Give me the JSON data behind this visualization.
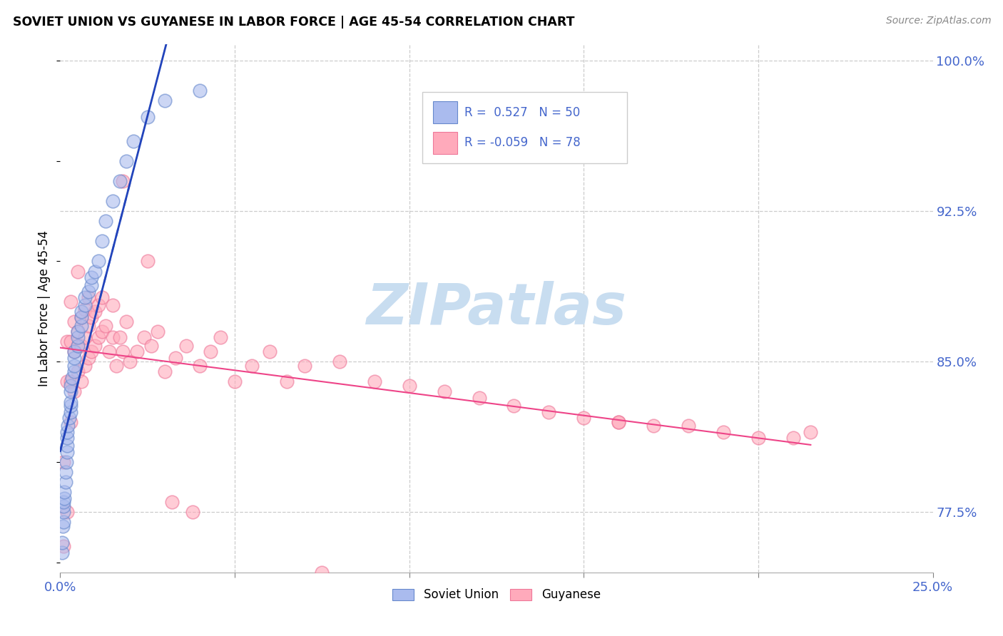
{
  "title": "SOVIET UNION VS GUYANESE IN LABOR FORCE | AGE 45-54 CORRELATION CHART",
  "source": "Source: ZipAtlas.com",
  "ylabel": "In Labor Force | Age 45-54",
  "xlim": [
    0.0,
    0.25
  ],
  "ylim": [
    0.745,
    1.008
  ],
  "yticks_right": [
    0.775,
    0.85,
    0.925,
    1.0
  ],
  "yticklabels_right": [
    "77.5%",
    "85.0%",
    "92.5%",
    "100.0%"
  ],
  "soviet_color": "#aabbee",
  "soviet_edge_color": "#6688cc",
  "guyanese_color": "#ffaabb",
  "guyanese_edge_color": "#ee7799",
  "soviet_line_color": "#2244bb",
  "guyanese_line_color": "#ee4488",
  "tick_color": "#4466cc",
  "watermark_color": "#c8ddf0",
  "soviet_x": [
    0.0005,
    0.0006,
    0.0008,
    0.001,
    0.001,
    0.001,
    0.001,
    0.0012,
    0.0012,
    0.0015,
    0.0015,
    0.0018,
    0.002,
    0.002,
    0.002,
    0.002,
    0.0022,
    0.0025,
    0.003,
    0.003,
    0.003,
    0.003,
    0.003,
    0.0035,
    0.004,
    0.004,
    0.004,
    0.004,
    0.005,
    0.005,
    0.005,
    0.006,
    0.006,
    0.006,
    0.007,
    0.007,
    0.008,
    0.009,
    0.009,
    0.01,
    0.011,
    0.012,
    0.013,
    0.015,
    0.017,
    0.019,
    0.021,
    0.025,
    0.03,
    0.04
  ],
  "soviet_y": [
    0.755,
    0.76,
    0.768,
    0.77,
    0.775,
    0.778,
    0.78,
    0.782,
    0.785,
    0.79,
    0.795,
    0.8,
    0.805,
    0.808,
    0.812,
    0.815,
    0.818,
    0.822,
    0.825,
    0.828,
    0.83,
    0.835,
    0.838,
    0.842,
    0.845,
    0.848,
    0.852,
    0.855,
    0.858,
    0.862,
    0.865,
    0.868,
    0.872,
    0.875,
    0.878,
    0.882,
    0.885,
    0.888,
    0.892,
    0.895,
    0.9,
    0.91,
    0.92,
    0.93,
    0.94,
    0.95,
    0.96,
    0.972,
    0.98,
    0.985
  ],
  "guyanese_x": [
    0.001,
    0.001,
    0.002,
    0.002,
    0.002,
    0.003,
    0.003,
    0.003,
    0.003,
    0.004,
    0.004,
    0.004,
    0.005,
    0.005,
    0.005,
    0.005,
    0.006,
    0.006,
    0.006,
    0.007,
    0.007,
    0.007,
    0.008,
    0.008,
    0.008,
    0.009,
    0.009,
    0.01,
    0.01,
    0.011,
    0.011,
    0.012,
    0.012,
    0.013,
    0.014,
    0.015,
    0.015,
    0.016,
    0.017,
    0.018,
    0.019,
    0.02,
    0.022,
    0.024,
    0.026,
    0.028,
    0.03,
    0.033,
    0.036,
    0.04,
    0.043,
    0.046,
    0.05,
    0.055,
    0.06,
    0.065,
    0.07,
    0.08,
    0.09,
    0.1,
    0.11,
    0.12,
    0.13,
    0.14,
    0.15,
    0.16,
    0.17,
    0.18,
    0.19,
    0.2,
    0.21,
    0.215,
    0.018,
    0.025,
    0.032,
    0.038,
    0.075,
    0.16
  ],
  "guyanese_y": [
    0.758,
    0.8,
    0.775,
    0.84,
    0.86,
    0.82,
    0.84,
    0.86,
    0.88,
    0.835,
    0.855,
    0.87,
    0.845,
    0.858,
    0.865,
    0.895,
    0.84,
    0.858,
    0.872,
    0.848,
    0.862,
    0.876,
    0.852,
    0.868,
    0.882,
    0.855,
    0.872,
    0.858,
    0.875,
    0.862,
    0.878,
    0.865,
    0.882,
    0.868,
    0.855,
    0.862,
    0.878,
    0.848,
    0.862,
    0.855,
    0.87,
    0.85,
    0.855,
    0.862,
    0.858,
    0.865,
    0.845,
    0.852,
    0.858,
    0.848,
    0.855,
    0.862,
    0.84,
    0.848,
    0.855,
    0.84,
    0.848,
    0.85,
    0.84,
    0.838,
    0.835,
    0.832,
    0.828,
    0.825,
    0.822,
    0.82,
    0.818,
    0.818,
    0.815,
    0.812,
    0.812,
    0.815,
    0.94,
    0.9,
    0.78,
    0.775,
    0.745,
    0.82
  ],
  "soviet_line_x": [
    0.0,
    0.05
  ],
  "soviet_line_y": [
    0.818,
    1.002
  ],
  "guyanese_line_x": [
    0.0,
    0.215
  ],
  "guyanese_line_y": [
    0.85,
    0.82
  ]
}
